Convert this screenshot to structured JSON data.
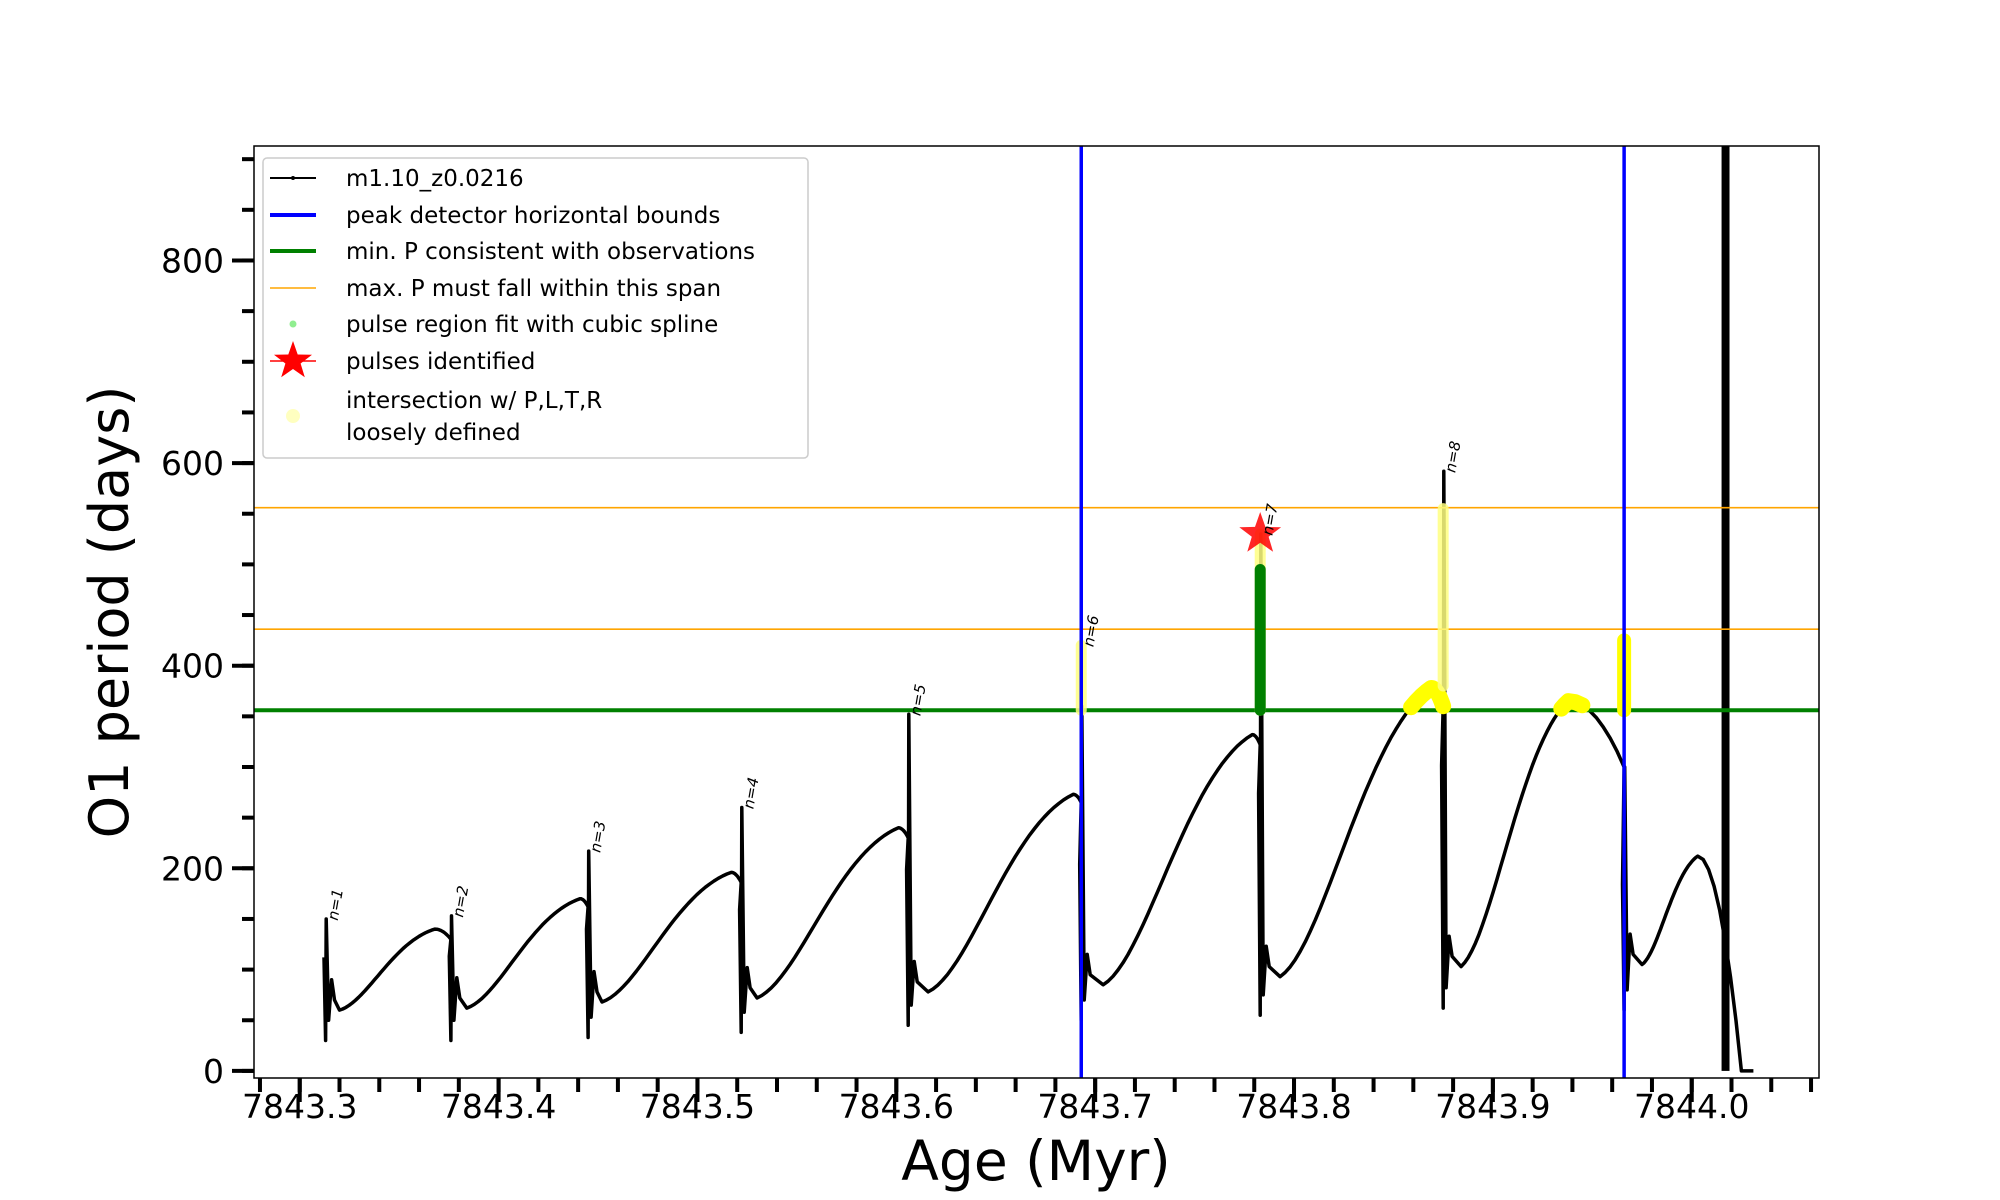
{
  "chart_data": {
    "type": "line",
    "xlabel": "Age (Myr)",
    "ylabel": "O1 period (days)",
    "xlim": [
      7843.277,
      7844.064
    ],
    "ylim": [
      -7,
      913
    ],
    "xticks": [
      7843.3,
      7843.4,
      7843.5,
      7843.6,
      7843.7,
      7843.8,
      7843.9,
      7844.0
    ],
    "xtick_labels": [
      "7843.3",
      "7843.4",
      "7843.5",
      "7843.6",
      "7843.7",
      "7843.8",
      "7843.9",
      "7844.0"
    ],
    "yticks": [
      0,
      200,
      400,
      600,
      800
    ],
    "ytick_labels": [
      "0",
      "200",
      "400",
      "600",
      "800"
    ],
    "legend_position": "top-left",
    "legend": [
      {
        "label": "m1.10_z0.0216",
        "kind": "line-marker",
        "color": "#000000"
      },
      {
        "label": "peak detector horizontal bounds",
        "kind": "line",
        "color": "#0000ff"
      },
      {
        "label": "min. P consistent with observations",
        "kind": "line",
        "color": "#008000"
      },
      {
        "label": "max. P must fall within this span",
        "kind": "thin-line",
        "color": "#ffa500"
      },
      {
        "label": "pulse region fit with cubic spline",
        "kind": "dot",
        "color": "#90ee90"
      },
      {
        "label": "pulses identified",
        "kind": "star",
        "color": "#ff0000"
      },
      {
        "label": "intersection w/ P,L,T,R",
        "label2": "loosely defined",
        "kind": "big-dot",
        "color": "#ffffc0"
      }
    ],
    "series_name": "m1.10_z0.0216",
    "cycles": [
      {
        "spike_age": 7843.313,
        "spike_hi": 150,
        "spike_lo": 30,
        "min_age": 7843.32,
        "min_p": 60,
        "peak_age": 7843.368,
        "peak_p": 140,
        "end_age": 7843.376,
        "end_p": 130
      },
      {
        "spike_age": 7843.376,
        "spike_hi": 153,
        "spike_lo": 30,
        "min_age": 7843.384,
        "min_p": 62,
        "peak_age": 7843.441,
        "peak_p": 170,
        "end_age": 7843.445,
        "end_p": 162
      },
      {
        "spike_age": 7843.445,
        "spike_hi": 217,
        "spike_lo": 33,
        "min_age": 7843.452,
        "min_p": 68,
        "peak_age": 7843.517,
        "peak_p": 196,
        "end_age": 7843.522,
        "end_p": 186
      },
      {
        "spike_age": 7843.522,
        "spike_hi": 260,
        "spike_lo": 38,
        "min_age": 7843.53,
        "min_p": 72,
        "peak_age": 7843.601,
        "peak_p": 240,
        "end_age": 7843.606,
        "end_p": 230
      },
      {
        "spike_age": 7843.606,
        "spike_hi": 352,
        "spike_lo": 45,
        "min_age": 7843.616,
        "min_p": 78,
        "peak_age": 7843.689,
        "peak_p": 273,
        "end_age": 7843.693,
        "end_p": 265
      },
      {
        "spike_age": 7843.693,
        "spike_hi": 360,
        "spike_lo": 50,
        "min_age": 7843.704,
        "min_p": 85,
        "peak_age": 7843.779,
        "peak_p": 332,
        "end_age": 7843.783,
        "end_p": 322
      },
      {
        "spike_age": 7843.783,
        "spike_hi": 530,
        "spike_lo": 55,
        "min_age": 7843.793,
        "min_p": 93,
        "peak_age": 7843.869,
        "peak_p": 378,
        "end_age": 7843.875,
        "end_p": 360
      },
      {
        "spike_age": 7843.875,
        "spike_hi": 592,
        "spike_lo": 62,
        "min_age": 7843.884,
        "min_p": 103,
        "peak_age": 7843.938,
        "peak_p": 365,
        "end_age": 7843.966,
        "end_p": 300
      },
      {
        "spike_age": 7843.966,
        "spike_hi": 300,
        "spike_lo": 60,
        "min_age": 7843.975,
        "min_p": 105,
        "peak_age": 7844.003,
        "peak_p": 212,
        "end_age": 7844.025,
        "end_p": 0
      }
    ],
    "tail": [
      [
        7844.025,
        0
      ],
      [
        7844.031,
        0
      ]
    ],
    "dense_band": {
      "age_from": 7844.015,
      "age_to": 7844.019,
      "p_from": 0,
      "p_to": 913
    },
    "peak_detector_bounds": [
      7843.693,
      7843.966
    ],
    "min_P": 356,
    "max_P_span": [
      436,
      556
    ],
    "pulse_labels": [
      {
        "text": "n=1",
        "age": 7843.313,
        "p": 150
      },
      {
        "text": "n=2",
        "age": 7843.376,
        "p": 153
      },
      {
        "text": "n=3",
        "age": 7843.445,
        "p": 217
      },
      {
        "text": "n=4",
        "age": 7843.522,
        "p": 260
      },
      {
        "text": "n=5",
        "age": 7843.606,
        "p": 352
      },
      {
        "text": "n=6",
        "age": 7843.693,
        "p": 420
      },
      {
        "text": "n=7",
        "age": 7843.783,
        "p": 530
      },
      {
        "text": "n=8",
        "age": 7843.875,
        "p": 592
      }
    ],
    "spline_region": {
      "age": 7843.783,
      "p_from": 356,
      "p_to": 495
    },
    "pulses_identified": [
      {
        "age": 7843.783,
        "p": 530
      }
    ],
    "intersection_bars": [
      {
        "age": 7843.693,
        "p_from": 356,
        "p_to": 420
      },
      {
        "age": 7843.783,
        "p_from": 356,
        "p_to": 530
      },
      {
        "age": 7843.875,
        "p_from": 380,
        "p_to": 555
      },
      {
        "age": 7843.966,
        "p_from": 356,
        "p_to": 425
      }
    ],
    "intersection_arcs": [
      {
        "cycle": 6,
        "age_from": 7843.85,
        "age_to": 7843.875
      },
      {
        "cycle": 7,
        "age_from": 7843.922,
        "age_to": 7843.955
      }
    ]
  }
}
